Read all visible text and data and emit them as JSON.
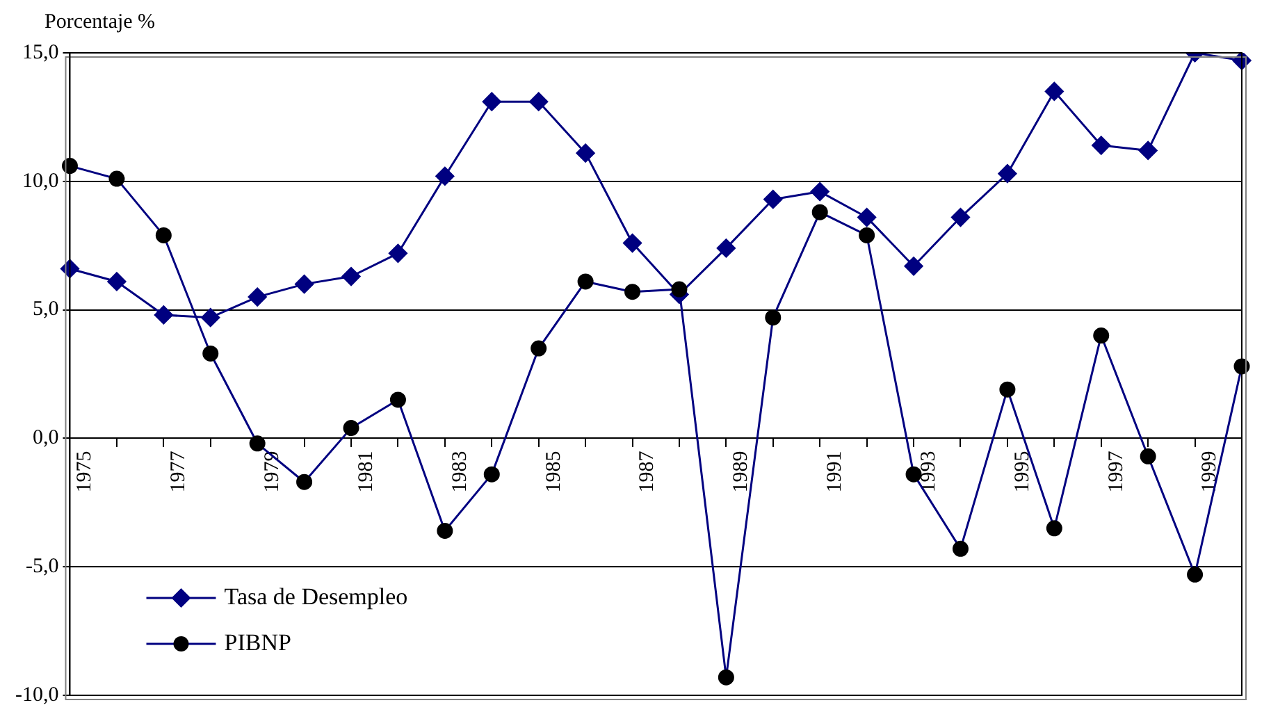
{
  "chart_data": {
    "type": "line",
    "ylabel": "Porcentaje %",
    "categories": [
      "1975",
      null,
      "1977",
      null,
      "1979",
      null,
      "1981",
      null,
      "1983",
      null,
      "1985",
      null,
      "1987",
      null,
      "1989",
      null,
      "1991",
      null,
      "1993",
      null,
      "1995",
      null,
      "1997",
      null,
      "1999",
      null
    ],
    "series": [
      {
        "name": "Tasa de Desempleo",
        "color": "#000080",
        "marker": "diamond",
        "values": [
          6.6,
          6.1,
          4.8,
          4.7,
          5.5,
          6.0,
          6.3,
          7.2,
          10.2,
          13.1,
          13.1,
          11.1,
          7.6,
          5.6,
          7.4,
          9.3,
          9.6,
          8.6,
          6.7,
          8.6,
          10.3,
          13.5,
          11.4,
          11.2,
          15.0,
          14.7
        ]
      },
      {
        "name": "PIBNP",
        "color": "#000000",
        "marker": "circle",
        "values": [
          10.6,
          10.1,
          7.9,
          3.3,
          -0.2,
          -1.7,
          0.4,
          1.5,
          -3.6,
          -1.4,
          3.5,
          6.1,
          5.7,
          5.8,
          -9.3,
          4.7,
          8.8,
          7.9,
          -1.4,
          -4.3,
          1.9,
          -3.5,
          4.0,
          -0.7,
          -5.3,
          2.8
        ]
      }
    ],
    "ylim": [
      -10,
      15
    ],
    "yticks": [
      {
        "value": -10,
        "label": "-10,0"
      },
      {
        "value": -5,
        "label": "-5,0"
      },
      {
        "value": 0,
        "label": "0,0"
      },
      {
        "value": 5,
        "label": "5,0"
      },
      {
        "value": 10,
        "label": "10,0"
      },
      {
        "value": 15,
        "label": "15,0"
      }
    ],
    "grid": "y",
    "legend": "bottom left",
    "line_style": "solid"
  }
}
